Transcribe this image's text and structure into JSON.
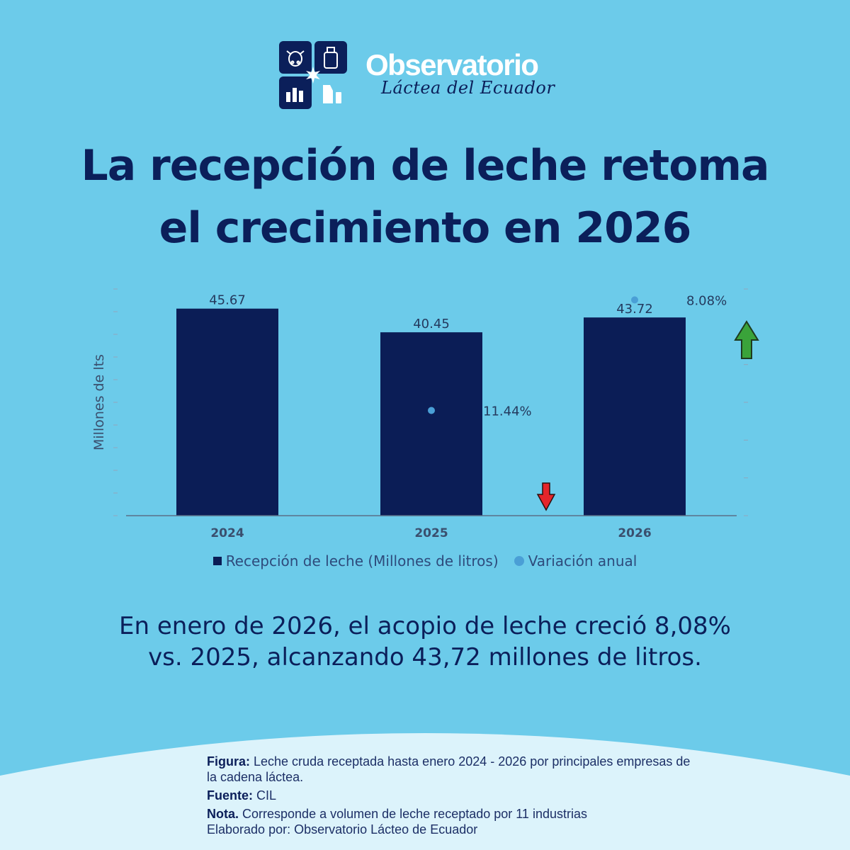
{
  "logo": {
    "word": "Observatorio",
    "script": "Láctea del Ecuador"
  },
  "headline": {
    "line1": "La recepción de leche retoma",
    "line2": "el crecimiento en 2026"
  },
  "colors": {
    "background": "#6ccbea",
    "bar": "#0b1d56",
    "dot": "#4a9fd6",
    "title": "#0b1f5a",
    "arrow_up": "#3aa33a",
    "arrow_down": "#e5262b"
  },
  "chart_data": {
    "type": "bar",
    "ylabel": "Millones de lts",
    "categories": [
      "2024",
      "2025",
      "2026"
    ],
    "series": [
      {
        "name": "Recepción de leche (Millones de litros)",
        "type": "bar",
        "values": [
          45.67,
          40.45,
          43.72
        ],
        "labels": [
          "45.67",
          "40.45",
          "43.72"
        ]
      },
      {
        "name": "Variación anual",
        "type": "scatter",
        "values": [
          null,
          -11.44,
          8.08
        ],
        "labels": [
          "",
          "11.44%",
          "8.08%"
        ]
      }
    ],
    "ylim": [
      0,
      50
    ],
    "y2lim": [
      -30,
      10
    ],
    "trend_arrows": [
      {
        "category": "2025",
        "direction": "down"
      },
      {
        "category": "2026",
        "direction": "up"
      }
    ],
    "legend_position": "bottom",
    "grid": false
  },
  "summary": {
    "line1": "En enero de 2026, el acopio de leche creció 8,08%",
    "line2": "vs. 2025, alcanzando 43,72 millones de litros."
  },
  "footer": {
    "figura_label": "Figura:",
    "figura_text": "Leche cruda receptada hasta enero 2024 - 2026 por principales empresas de la cadena láctea.",
    "fuente_label": "Fuente:",
    "fuente_text": "CIL",
    "nota_label": "Nota.",
    "nota_text": "Corresponde a volumen de leche receptado por 11 industrias",
    "elaborado": "Elaborado por: Observatorio Lácteo de Ecuador"
  }
}
